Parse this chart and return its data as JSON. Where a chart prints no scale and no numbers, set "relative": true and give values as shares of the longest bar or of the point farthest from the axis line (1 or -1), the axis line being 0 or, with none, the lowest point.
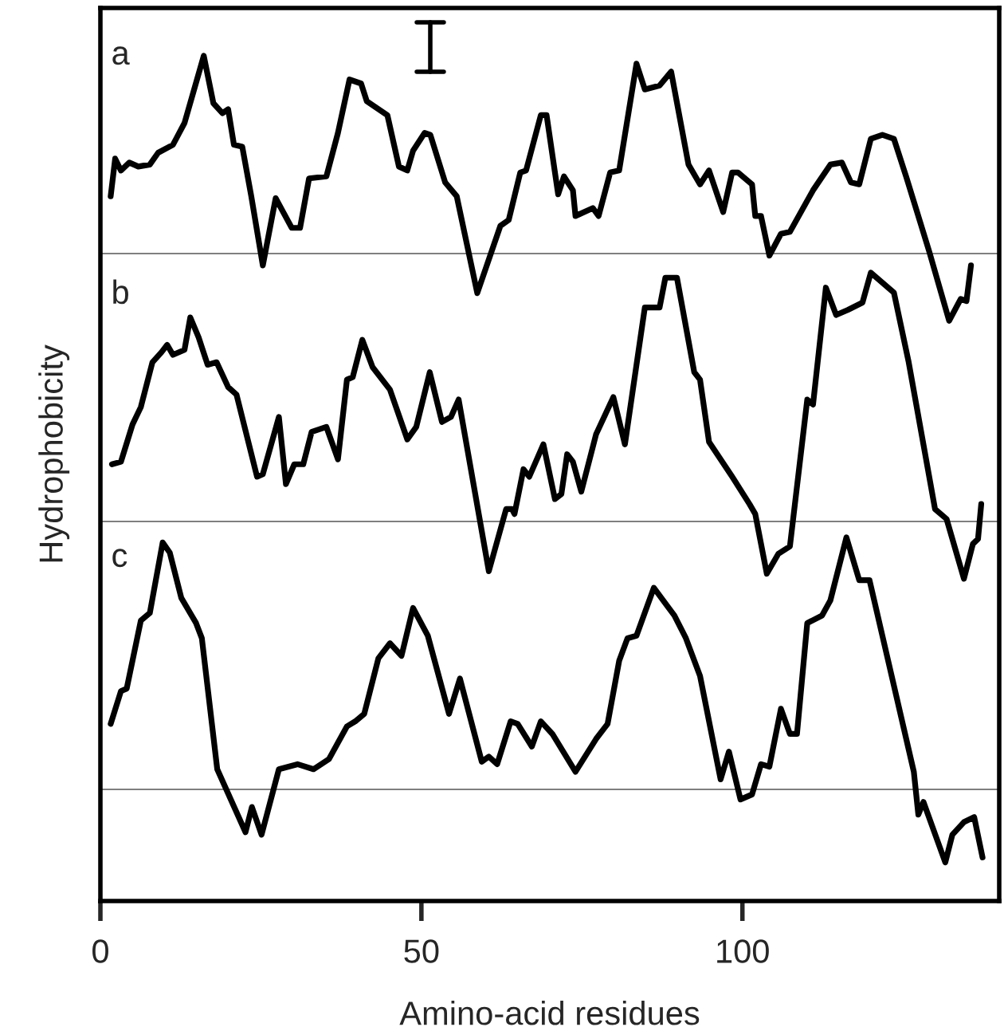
{
  "chart_data": [
    {
      "type": "line",
      "title": "a",
      "relative": true,
      "xlim": [
        0,
        140
      ],
      "tick_labels": false,
      "grid": false,
      "legend": false,
      "series": [
        {
          "color": "#000000",
          "x": [
            1.6,
            2.3,
            3.2,
            4.5,
            5.9,
            7.7,
            9.0,
            11.3,
            13.1,
            16.1,
            17.6,
            19.0,
            19.9,
            20.8,
            22.1,
            23.5,
            25.3,
            27.3,
            29.8,
            31.1,
            32.5,
            35.2,
            37.0,
            38.8,
            40.6,
            41.5,
            44.7,
            46.5,
            47.8,
            48.7,
            50.5,
            51.4,
            53.7,
            55.5,
            58.7,
            62.3,
            63.6,
            65.4,
            66.3,
            68.6,
            69.5,
            70.8,
            71.3,
            72.2,
            73.6,
            74.0,
            76.7,
            77.6,
            79.4,
            80.8,
            83.5,
            84.8,
            87.1,
            88.9,
            91.6,
            93.4,
            94.8,
            97.0,
            98.4,
            99.3,
            101.5,
            102.0,
            102.9,
            104.2,
            106.0,
            107.4,
            111.0,
            113.7,
            115.5,
            116.9,
            118.2,
            120.0,
            121.8,
            123.6,
            125.5,
            129.1,
            132.2,
            134.0,
            134.9,
            135.6
          ],
          "values": [
            0.29,
            0.48,
            0.42,
            0.46,
            0.44,
            0.45,
            0.51,
            0.55,
            0.66,
            1,
            0.76,
            0.71,
            0.73,
            0.55,
            0.54,
            0.29,
            -0.06,
            0.28,
            0.13,
            0.13,
            0.38,
            0.39,
            0.61,
            0.88,
            0.86,
            0.77,
            0.7,
            0.44,
            0.42,
            0.52,
            0.61,
            0.6,
            0.36,
            0.29,
            -0.2,
            0.14,
            0.17,
            0.41,
            0.42,
            0.7,
            0.7,
            0.41,
            0.3,
            0.39,
            0.32,
            0.19,
            0.23,
            0.19,
            0.41,
            0.42,
            0.96,
            0.83,
            0.85,
            0.92,
            0.45,
            0.35,
            0.42,
            0.21,
            0.41,
            0.41,
            0.35,
            0.19,
            0.19,
            -0.01,
            0.1,
            0.11,
            0.32,
            0.45,
            0.46,
            0.36,
            0.35,
            0.58,
            0.6,
            0.58,
            0.39,
            0.01,
            -0.34,
            -0.23,
            -0.24,
            -0.06
          ]
        }
      ]
    },
    {
      "type": "line",
      "title": "b",
      "relative": true,
      "xlim": [
        0,
        140
      ],
      "tick_labels": false,
      "grid": false,
      "legend": false,
      "series": [
        {
          "color": "#000000",
          "x": [
            1.8,
            3.2,
            5.0,
            6.3,
            8.1,
            9.5,
            10.4,
            11.3,
            13.1,
            14.0,
            15.3,
            16.7,
            18.1,
            19.9,
            21.2,
            24.4,
            25.3,
            27.8,
            28.9,
            30.2,
            31.6,
            32.9,
            35.2,
            37.0,
            38.4,
            39.3,
            40.8,
            42.4,
            45.1,
            47.8,
            49.2,
            51.3,
            53.2,
            54.6,
            55.8,
            60.5,
            63.2,
            64.1,
            64.5,
            65.9,
            66.8,
            69.0,
            70.8,
            71.8,
            72.7,
            73.6,
            74.9,
            77.2,
            79.9,
            81.7,
            84.8,
            87.1,
            88.0,
            89.8,
            92.5,
            93.4,
            94.8,
            98.4,
            101.1,
            102.0,
            103.8,
            105.6,
            107.4,
            110.1,
            111.0,
            113.0,
            114.6,
            116.4,
            118.7,
            120.0,
            121.8,
            123.6,
            125.9,
            130.0,
            131.8,
            134.5,
            135.9,
            136.7,
            137.2
          ],
          "values": [
            0.23,
            0.24,
            0.39,
            0.46,
            0.64,
            0.68,
            0.71,
            0.67,
            0.69,
            0.82,
            0.74,
            0.63,
            0.64,
            0.54,
            0.51,
            0.18,
            0.19,
            0.42,
            0.15,
            0.23,
            0.23,
            0.36,
            0.38,
            0.25,
            0.57,
            0.58,
            0.73,
            0.62,
            0.53,
            0.33,
            0.38,
            0.6,
            0.4,
            0.42,
            0.49,
            -0.2,
            0.05,
            0.05,
            0.03,
            0.21,
            0.18,
            0.31,
            0.09,
            0.11,
            0.27,
            0.24,
            0.12,
            0.35,
            0.5,
            0.31,
            0.86,
            0.86,
            0.98,
            0.98,
            0.6,
            0.57,
            0.32,
            0.18,
            0.07,
            0.03,
            -0.21,
            -0.13,
            -0.1,
            0.49,
            0.47,
            0.94,
            0.83,
            0.85,
            0.88,
            1,
            0.96,
            0.92,
            0.64,
            0.05,
            0.01,
            -0.23,
            -0.09,
            -0.07,
            0.07
          ]
        }
      ]
    },
    {
      "type": "line",
      "title": "c",
      "relative": true,
      "xlim": [
        0,
        140
      ],
      "xticks": [
        0,
        50,
        100
      ],
      "tick_labels": "x",
      "grid": false,
      "legend": false,
      "xlabel": "Amino-acid residues",
      "ylabel": "Hydrophobicity",
      "series": [
        {
          "color": "#000000",
          "x": [
            1.6,
            3.2,
            4.1,
            6.3,
            7.7,
            9.7,
            10.8,
            12.6,
            14.9,
            15.8,
            18.2,
            22.6,
            23.6,
            25.1,
            27.8,
            30.7,
            33.2,
            35.6,
            38.4,
            39.7,
            41.1,
            43.3,
            45.1,
            46.9,
            48.7,
            51.0,
            54.3,
            56.0,
            59.4,
            60.5,
            61.8,
            63.9,
            65.0,
            67.2,
            68.6,
            70.4,
            74.0,
            77.2,
            79.0,
            80.8,
            82.1,
            83.5,
            86.2,
            89.4,
            91.2,
            93.4,
            96.6,
            97.9,
            99.7,
            101.5,
            102.9,
            104.2,
            106.0,
            107.4,
            108.5,
            110.1,
            112.4,
            113.7,
            116.2,
            118.2,
            119.8,
            121.8,
            126.7,
            127.4,
            128.2,
            131.6,
            132.7,
            134.5,
            136.1,
            137.4
          ],
          "values": [
            0.26,
            0.39,
            0.4,
            0.67,
            0.7,
            0.98,
            0.94,
            0.76,
            0.66,
            0.6,
            0.08,
            -0.17,
            -0.07,
            -0.18,
            0.08,
            0.1,
            0.08,
            0.12,
            0.25,
            0.27,
            0.3,
            0.52,
            0.58,
            0.53,
            0.72,
            0.61,
            0.3,
            0.44,
            0.11,
            0.13,
            0.1,
            0.27,
            0.26,
            0.17,
            0.27,
            0.22,
            0.07,
            0.2,
            0.26,
            0.51,
            0.6,
            0.61,
            0.8,
            0.69,
            0.6,
            0.45,
            0.04,
            0.15,
            -0.04,
            -0.02,
            0.1,
            0.09,
            0.32,
            0.22,
            0.22,
            0.66,
            0.69,
            0.75,
            1,
            0.83,
            0.83,
            0.61,
            0.07,
            -0.1,
            -0.05,
            -0.29,
            -0.18,
            -0.13,
            -0.11,
            -0.27
          ]
        }
      ]
    }
  ]
}
